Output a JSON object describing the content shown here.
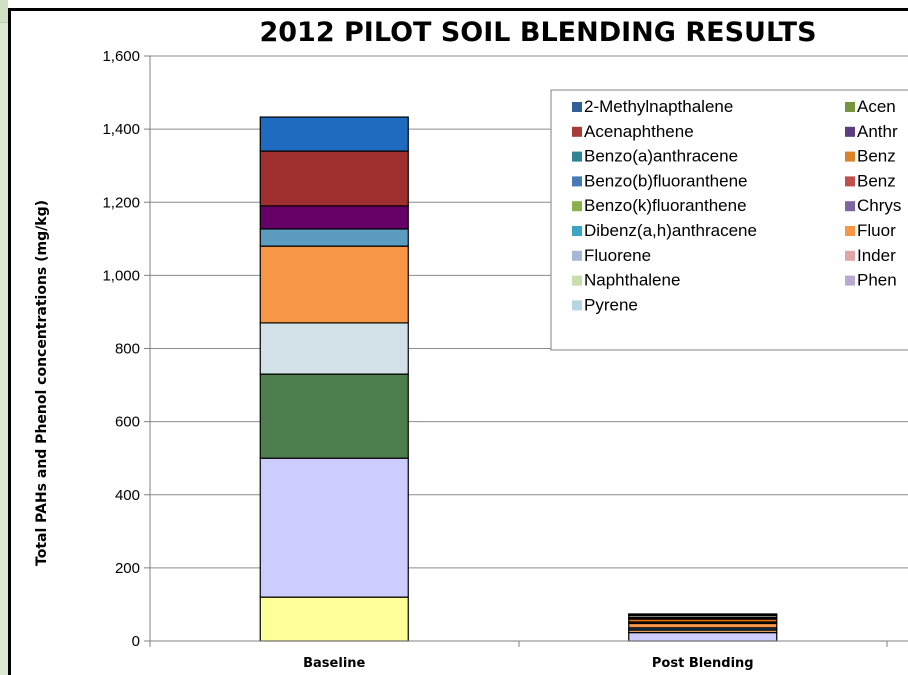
{
  "chart_data": {
    "type": "bar",
    "stacked": true,
    "title": "2012 PILOT SOIL BLENDING RESULTS",
    "xlabel": "",
    "ylabel": "Total PAHs and Phenol concentrations (mg/kg)",
    "ylim": [
      0,
      1600
    ],
    "yticks": [
      0,
      200,
      400,
      600,
      800,
      1000,
      1200,
      1400,
      1600
    ],
    "ytick_labels": [
      "0",
      "200",
      "400",
      "600",
      "800",
      "1,000",
      "1,200",
      "1,400",
      "1,600"
    ],
    "categories": [
      "Baseline",
      "Post Blending"
    ],
    "grid": true,
    "legend_position": "top-right",
    "series": [
      {
        "name": "2-Methylnapthalene",
        "color": "#2f5f96",
        "values": [
          0,
          3
        ]
      },
      {
        "name": "Acenaphthene",
        "color": "#a63b38",
        "values": [
          0,
          2
        ]
      },
      {
        "name": "Benzo(a)anthracene",
        "color": "#2e8395",
        "values": [
          0,
          3
        ]
      },
      {
        "name": "Benzo(b)fluoranthene",
        "color": "#4a79b8",
        "values": [
          0,
          3
        ]
      },
      {
        "name": "Benzo(k)fluoranthene",
        "color": "#8cb04b",
        "values": [
          0,
          2
        ]
      },
      {
        "name": "Dibenz(a,h)anthracene",
        "color": "#3aa6c4",
        "values": [
          0,
          2
        ]
      },
      {
        "name": "Fluorene",
        "color": "#a9b7d6",
        "values": [
          0,
          3
        ]
      },
      {
        "name": "Naphthalene",
        "color": "#c9dfae",
        "values": [
          0,
          2
        ]
      },
      {
        "name": "Pyrene",
        "color": "#b5d6e3",
        "values": [
          0,
          2
        ]
      },
      {
        "name": "Acen",
        "color": "#76953c",
        "values": [
          0,
          0
        ]
      },
      {
        "name": "Anthr",
        "color": "#5d3d7d",
        "values": [
          0,
          0
        ]
      },
      {
        "name": "Benz",
        "color": "#d9822b",
        "values": [
          0,
          0
        ]
      },
      {
        "name": "Benz",
        "color": "#c0504d",
        "values": [
          0,
          0
        ]
      },
      {
        "name": "Chrys",
        "color": "#8064a2",
        "values": [
          0,
          0
        ]
      },
      {
        "name": "Fluor",
        "color": "#f79646",
        "values": [
          0,
          0
        ]
      },
      {
        "name": "Inder",
        "color": "#dea6a4",
        "values": [
          0,
          0
        ]
      },
      {
        "name": "Phen",
        "color": "#b9a9cf",
        "values": [
          0,
          0
        ]
      }
    ],
    "visible_stack": [
      {
        "colors": [
          "#ffff99",
          "#ccccff",
          "#4e7d4e",
          "#d2e1e7",
          "#f79646",
          "#5b9cc0",
          "#660066",
          "#a03030",
          "#1f6bbf"
        ],
        "values": [
          120,
          380,
          230,
          140,
          210,
          47,
          63,
          150,
          93
        ]
      },
      {
        "colors": [
          "#ccccff",
          "#d9a066",
          "#1f4e79",
          "#f79646",
          "#333333",
          "#e36c09",
          "#000000",
          "#7f7f7f",
          "#000000"
        ],
        "values": [
          23,
          7,
          6,
          12,
          4,
          8,
          4,
          6,
          4
        ]
      }
    ]
  }
}
